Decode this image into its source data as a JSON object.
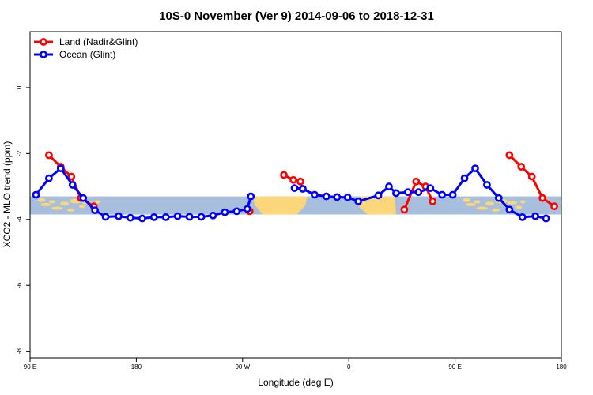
{
  "chart_data": {
    "type": "line",
    "title": "10S-0 November (Ver 9)   2014-09-06 to 2018-12-31",
    "xlabel": "Longitude (deg E)",
    "ylabel": "XCO2 - MLO trend (ppm)",
    "xlim": [
      90,
      540
    ],
    "ylim": [
      -8.2,
      1.7
    ],
    "xticks": [
      {
        "value": 90,
        "label": "90 E"
      },
      {
        "value": 180,
        "label": "180"
      },
      {
        "value": 270,
        "label": "90 W"
      },
      {
        "value": 360,
        "label": "0"
      },
      {
        "value": 450,
        "label": "90 E"
      },
      {
        "value": 540,
        "label": "180"
      }
    ],
    "yticks": [
      {
        "value": 0,
        "label": "0"
      },
      {
        "value": -2,
        "label": "-2"
      },
      {
        "value": -4,
        "label": "-4"
      },
      {
        "value": -6,
        "label": "-6"
      },
      {
        "value": -8,
        "label": "-8"
      }
    ],
    "band": {
      "y0": -3.85,
      "y1": -3.3,
      "color": "#a7bfdd",
      "land_color": "#fbd67a"
    },
    "legend": {
      "placement": "top-left"
    },
    "series": [
      {
        "name": "Land (Nadir&Glint)",
        "color": "#ff0000",
        "segments": [
          [
            [
              106,
              -2.05
            ],
            [
              116,
              -2.4
            ],
            [
              125,
              -2.7
            ],
            [
              133,
              -3.35
            ],
            [
              144,
              -3.6
            ]
          ],
          [
            [
              276,
              -3.75
            ]
          ],
          [
            [
              305,
              -2.65
            ],
            [
              313,
              -2.8
            ],
            [
              319,
              -2.85
            ]
          ],
          [
            [
              407,
              -3.7
            ],
            [
              417,
              -2.85
            ],
            [
              425,
              -3.0
            ],
            [
              431,
              -3.45
            ]
          ],
          [
            [
              496,
              -2.05
            ],
            [
              506,
              -2.4
            ],
            [
              515,
              -2.7
            ],
            [
              524,
              -3.35
            ],
            [
              534,
              -3.6
            ]
          ]
        ]
      },
      {
        "name": "Ocean (Glint)",
        "color": "#0000ff",
        "segments": [
          [
            [
              95,
              -3.25
            ],
            [
              106,
              -2.75
            ],
            [
              116,
              -2.45
            ],
            [
              126,
              -2.95
            ],
            [
              135,
              -3.35
            ],
            [
              145,
              -3.72
            ],
            [
              154,
              -3.92
            ],
            [
              165,
              -3.9
            ],
            [
              175,
              -3.95
            ],
            [
              185,
              -3.97
            ],
            [
              195,
              -3.93
            ],
            [
              205,
              -3.93
            ],
            [
              215,
              -3.9
            ],
            [
              225,
              -3.92
            ],
            [
              235,
              -3.92
            ],
            [
              245,
              -3.88
            ],
            [
              255,
              -3.78
            ],
            [
              265,
              -3.75
            ],
            [
              274,
              -3.68
            ],
            [
              277,
              -3.3
            ]
          ],
          [
            [
              314,
              -3.05
            ],
            [
              321,
              -3.07
            ],
            [
              331,
              -3.25
            ],
            [
              341,
              -3.3
            ],
            [
              350,
              -3.32
            ],
            [
              359,
              -3.33
            ],
            [
              368,
              -3.45
            ],
            [
              385,
              -3.27
            ],
            [
              394,
              -3.0
            ],
            [
              400,
              -3.2
            ],
            [
              410,
              -3.17
            ],
            [
              419,
              -3.17
            ],
            [
              429,
              -3.05
            ],
            [
              439,
              -3.25
            ],
            [
              448,
              -3.25
            ],
            [
              458,
              -2.75
            ],
            [
              467,
              -2.45
            ],
            [
              477,
              -2.95
            ],
            [
              487,
              -3.35
            ],
            [
              496,
              -3.7
            ],
            [
              507,
              -3.93
            ],
            [
              518,
              -3.9
            ],
            [
              527,
              -3.97
            ]
          ]
        ]
      }
    ]
  }
}
